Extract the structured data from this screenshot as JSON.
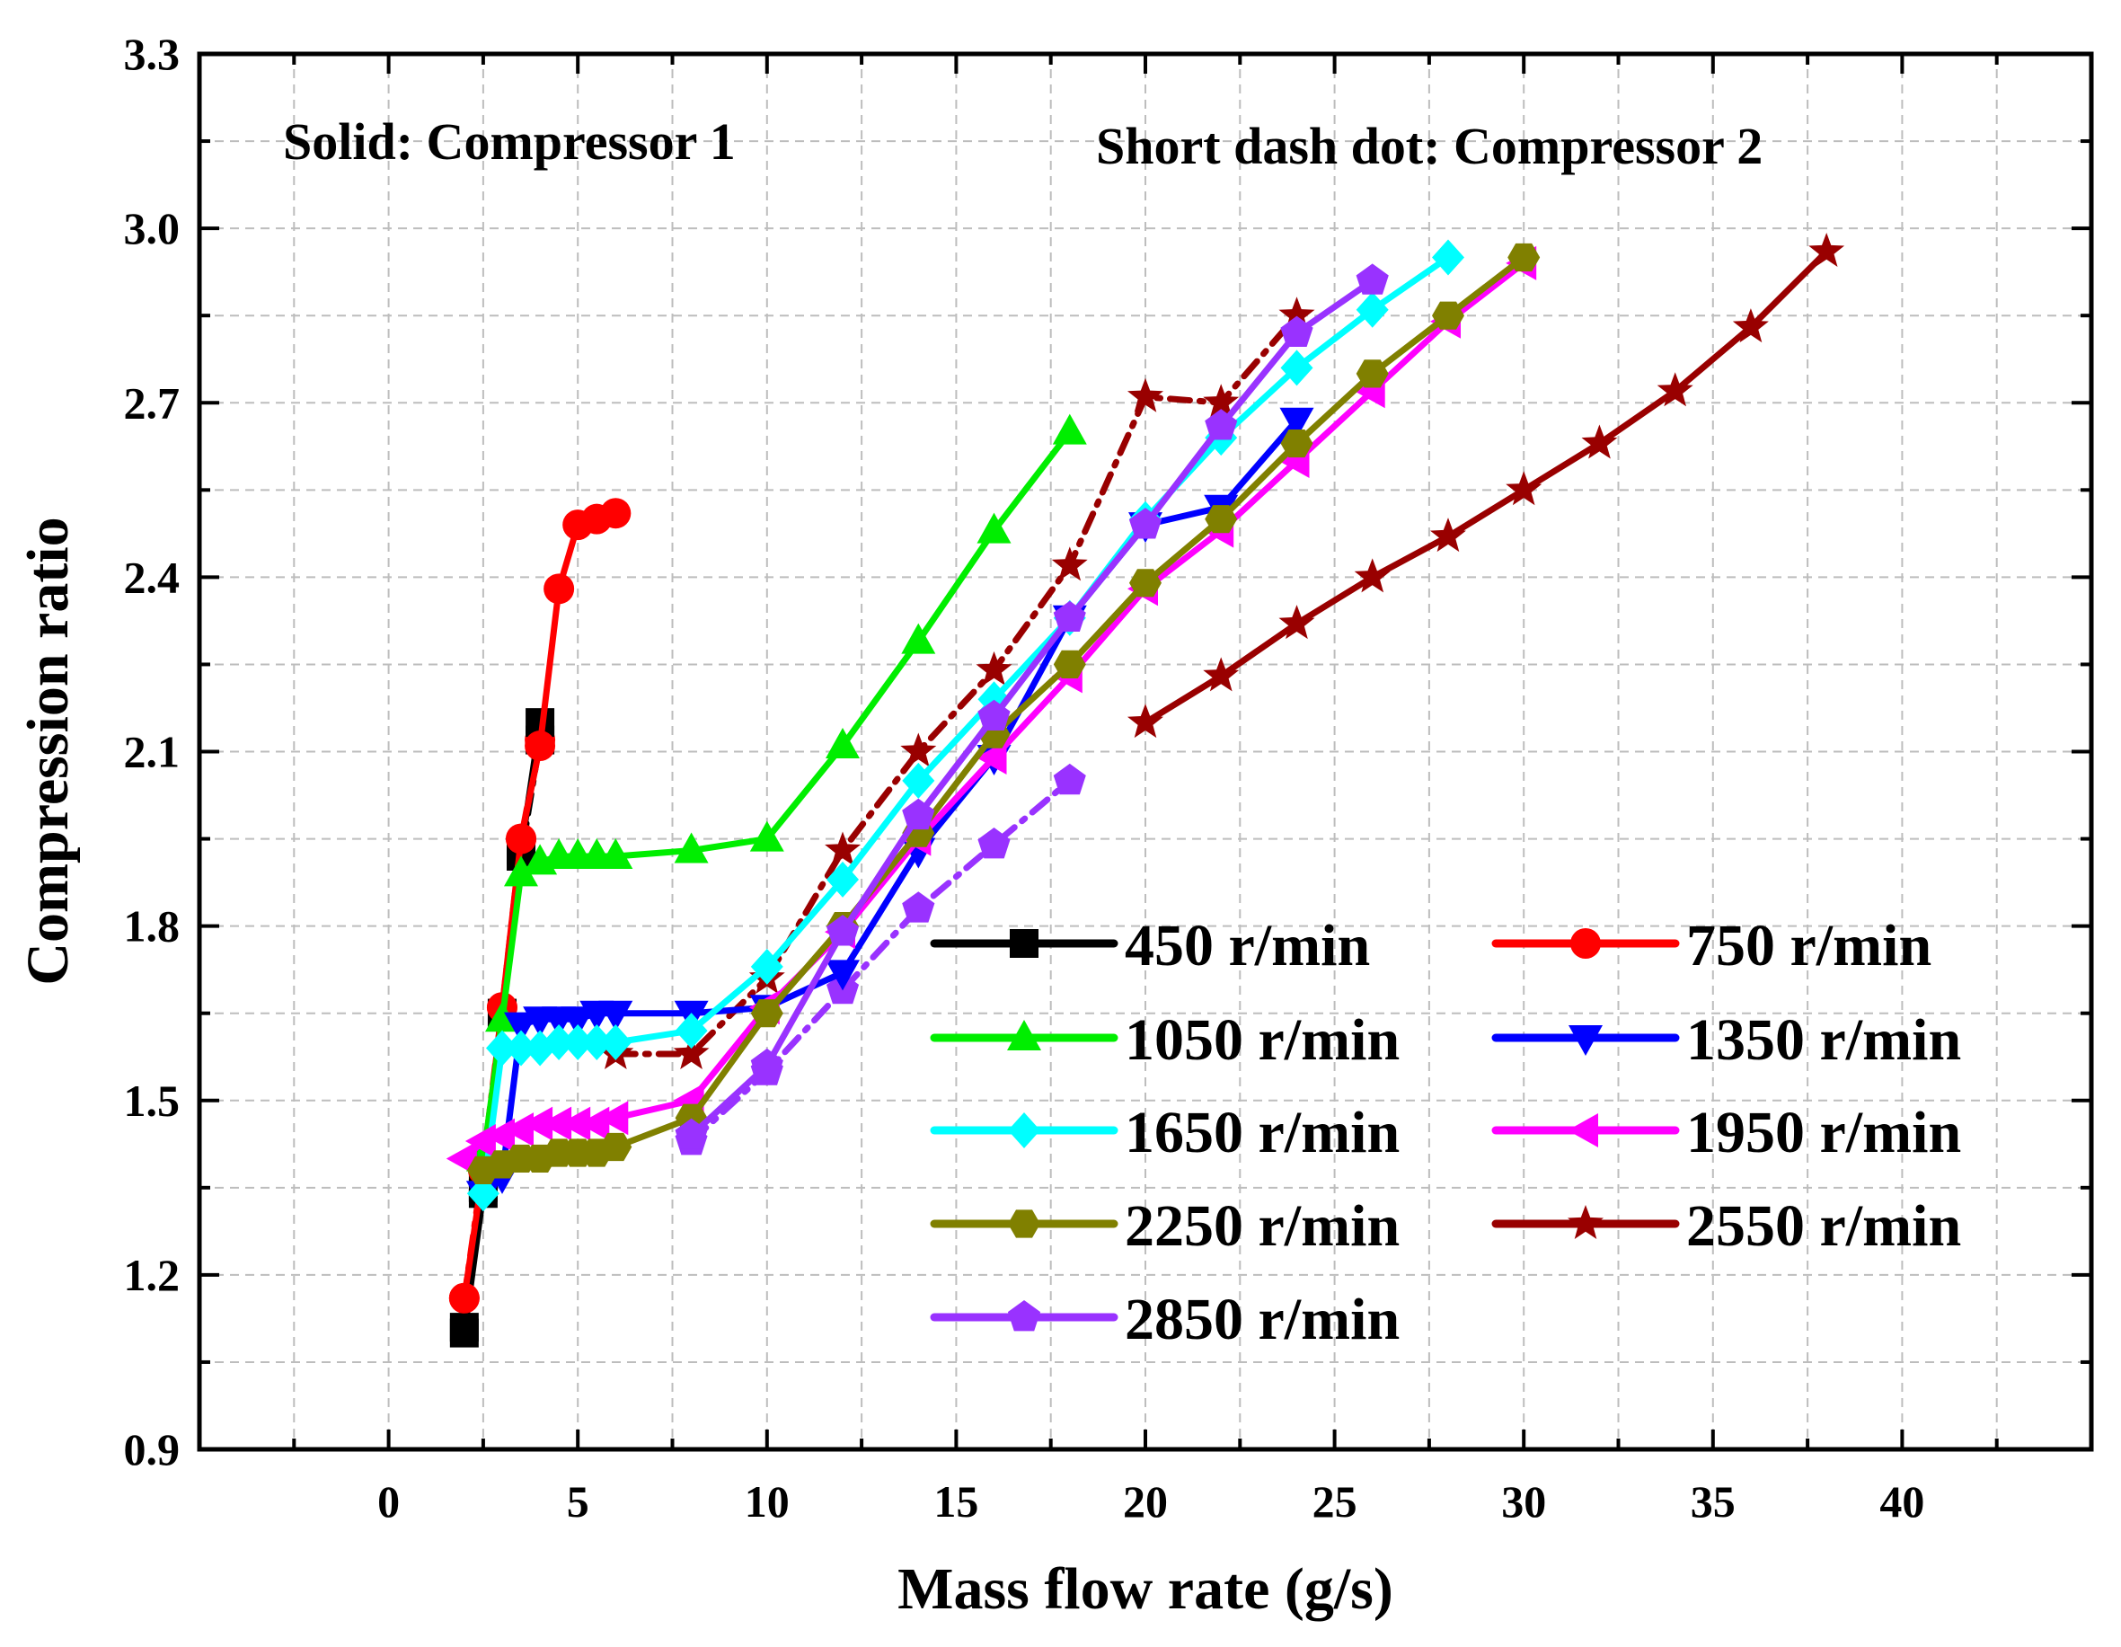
{
  "chart_data": {
    "type": "line",
    "title": "",
    "xlabel": "Mass flow rate (g/s)",
    "ylabel": "Compression ratio",
    "xlim": [
      -5,
      45
    ],
    "ylim": [
      0.9,
      3.3
    ],
    "xticks": [
      0,
      5,
      10,
      15,
      20,
      25,
      30,
      35,
      40
    ],
    "yticks": [
      0.9,
      1.2,
      1.5,
      1.8,
      2.1,
      2.4,
      2.7,
      3.0,
      3.3
    ],
    "x_tick_labels": [
      "0",
      "5",
      "10",
      "15",
      "20",
      "25",
      "30",
      "35",
      "40"
    ],
    "y_tick_labels": [
      "0.9",
      "1.2",
      "1.5",
      "1.8",
      "2.1",
      "2.4",
      "2.7",
      "3.0",
      "3.3"
    ],
    "grid": true,
    "annotations": {
      "left": "Solid: Compressor 1",
      "right": "Short dash dot: Compressor 2"
    },
    "legend_position": "lower-right",
    "series": [
      {
        "name": "450 r/min",
        "color": "#000000",
        "marker": "square",
        "compressor": 1,
        "x": [
          2.0,
          2.5,
          3.0,
          3.5,
          4.0
        ],
        "y": [
          1.1,
          1.34,
          1.65,
          1.93,
          2.15
        ]
      },
      {
        "name": "750 r/min",
        "color": "#ff0000",
        "marker": "circle",
        "compressor": 1,
        "x": [
          2.0,
          2.5,
          3.0,
          3.5,
          4.0,
          4.5,
          5.0,
          5.5,
          6.0
        ],
        "y": [
          1.16,
          1.38,
          1.66,
          1.95,
          2.11,
          2.38,
          2.49,
          2.5,
          2.51
        ]
      },
      {
        "name": "1050 r/min",
        "color": "#00ee00",
        "marker": "triangle-up",
        "compressor": 1,
        "x": [
          2.5,
          3.0,
          3.5,
          4.0,
          4.5,
          5.0,
          5.5,
          6.0,
          8.0,
          10.0,
          12.0,
          14.0,
          16.0,
          18.0
        ],
        "y": [
          1.4,
          1.64,
          1.89,
          1.91,
          1.92,
          1.92,
          1.92,
          1.92,
          1.93,
          1.95,
          2.11,
          2.29,
          2.48,
          2.65
        ]
      },
      {
        "name": "1350 r/min",
        "color": "#0000ff",
        "marker": "triangle-down",
        "compressor": 1,
        "x": [
          2.5,
          3.0,
          3.5,
          4.0,
          4.5,
          5.0,
          5.5,
          6.0,
          8.0,
          10.0,
          12.0,
          14.0,
          16.0,
          18.0,
          20.0,
          22.0,
          24.0
        ],
        "y": [
          1.34,
          1.37,
          1.63,
          1.64,
          1.64,
          1.64,
          1.65,
          1.65,
          1.65,
          1.66,
          1.72,
          1.93,
          2.09,
          2.33,
          2.49,
          2.52,
          2.67
        ]
      },
      {
        "name": "1650 r/min",
        "color": "#00ffff",
        "marker": "diamond",
        "compressor": 1,
        "x": [
          2.5,
          3.0,
          3.5,
          4.0,
          4.5,
          5.0,
          5.5,
          6.0,
          8.0,
          10.0,
          12.0,
          14.0,
          16.0,
          18.0,
          20.0,
          22.0,
          24.0,
          26.0,
          28.0
        ],
        "y": [
          1.34,
          1.59,
          1.59,
          1.59,
          1.6,
          1.6,
          1.6,
          1.6,
          1.62,
          1.73,
          1.88,
          2.05,
          2.19,
          2.33,
          2.5,
          2.64,
          2.76,
          2.86,
          2.95
        ]
      },
      {
        "name": "1950 r/min",
        "color": "#ff00ff",
        "marker": "triangle-left",
        "compressor": 1,
        "x": [
          2.0,
          2.5,
          3.0,
          3.5,
          4.0,
          4.5,
          5.0,
          5.5,
          6.0,
          8.0,
          10.0,
          12.0,
          14.0,
          16.0,
          18.0,
          20.0,
          22.0,
          24.0,
          26.0,
          28.0,
          30.0
        ],
        "y": [
          1.4,
          1.43,
          1.44,
          1.45,
          1.46,
          1.46,
          1.46,
          1.46,
          1.47,
          1.5,
          1.66,
          1.79,
          1.95,
          2.09,
          2.23,
          2.38,
          2.48,
          2.6,
          2.72,
          2.84,
          2.94
        ]
      },
      {
        "name": "2250 r/min",
        "color": "#808000",
        "marker": "hexagon",
        "compressor": 1,
        "x": [
          2.5,
          3.0,
          3.5,
          4.0,
          4.5,
          5.0,
          5.5,
          6.0,
          8.0,
          10.0,
          12.0,
          14.0,
          16.0,
          18.0,
          20.0,
          22.0,
          24.0,
          26.0,
          28.0,
          30.0
        ],
        "y": [
          1.38,
          1.39,
          1.4,
          1.4,
          1.41,
          1.41,
          1.41,
          1.42,
          1.47,
          1.65,
          1.8,
          1.96,
          2.13,
          2.25,
          2.39,
          2.5,
          2.63,
          2.75,
          2.85,
          2.95
        ]
      },
      {
        "name": "2550 r/min",
        "color": "#990000",
        "marker": "star",
        "compressor": 1,
        "x": [
          20.0,
          22.0,
          24.0,
          26.0,
          28.0,
          30.0,
          32.0,
          34.0,
          36.0,
          38.0
        ],
        "y": [
          2.15,
          2.23,
          2.32,
          2.4,
          2.47,
          2.55,
          2.63,
          2.72,
          2.83,
          2.96
        ]
      },
      {
        "name": "2850 r/min",
        "color": "#9932ff",
        "marker": "pentagon",
        "compressor": 1,
        "x": [
          8.0,
          10.0,
          12.0,
          14.0,
          16.0,
          18.0,
          20.0,
          22.0,
          24.0,
          26.0
        ],
        "y": [
          1.44,
          1.56,
          1.79,
          1.99,
          2.16,
          2.33,
          2.49,
          2.66,
          2.82,
          2.91
        ]
      }
    ],
    "compressor2_series": [
      {
        "name": "450 r/min",
        "color": "#000000",
        "marker": "square",
        "x": [
          2.0,
          2.5,
          3.0,
          3.5,
          4.0
        ],
        "y": [
          1.11,
          1.35,
          1.65,
          1.92,
          2.12
        ]
      },
      {
        "name": "750 r/min",
        "color": "#ff0000",
        "marker": "circle",
        "x": [
          2.0,
          2.5,
          3.0,
          3.5,
          4.0
        ],
        "y": [
          1.16,
          1.39,
          1.66,
          1.95,
          2.12
        ]
      },
      {
        "name": "2550 r/min",
        "color": "#990000",
        "marker": "star",
        "x": [
          6.0,
          8.0,
          10.0,
          12.0,
          14.0,
          16.0,
          18.0,
          20.0,
          22.0,
          24.0
        ],
        "y": [
          1.58,
          1.58,
          1.71,
          1.93,
          2.1,
          2.24,
          2.42,
          2.71,
          2.7,
          2.85
        ]
      },
      {
        "name": "2850 r/min",
        "color": "#9932ff",
        "marker": "pentagon",
        "x": [
          8.0,
          10.0,
          12.0,
          14.0,
          16.0,
          18.0
        ],
        "y": [
          1.43,
          1.55,
          1.69,
          1.83,
          1.94,
          2.05
        ]
      }
    ]
  }
}
